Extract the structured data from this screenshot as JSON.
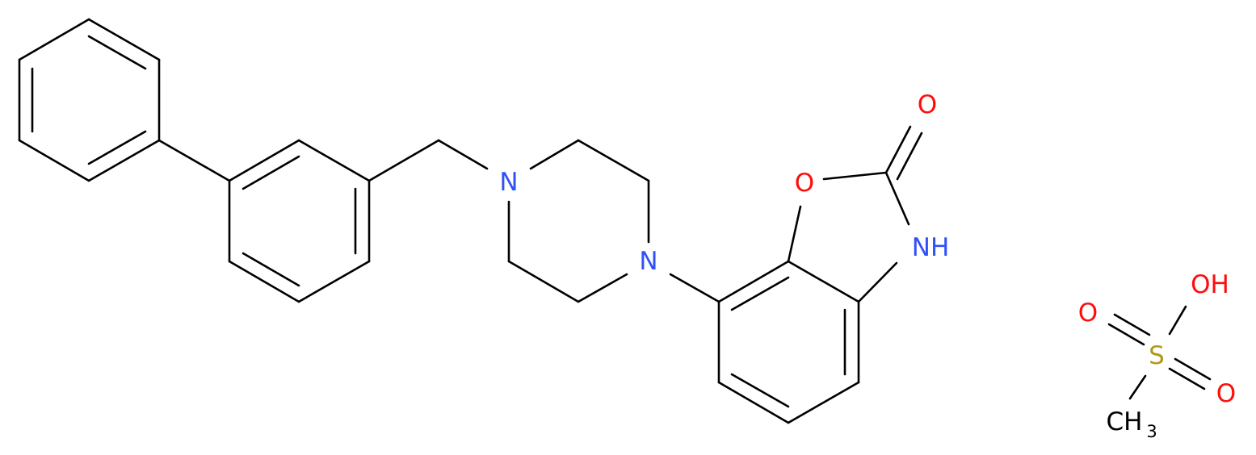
{
  "atoms": [
    {
      "label": "N"
    },
    {
      "label": "N"
    },
    {
      "label": "O"
    },
    {
      "label": "O"
    },
    {
      "label": "NH"
    },
    {
      "label": "O"
    },
    {
      "label": "OH"
    },
    {
      "label": "S"
    },
    {
      "label": "O"
    },
    {
      "label": "CH",
      "subscript": "3"
    }
  ]
}
